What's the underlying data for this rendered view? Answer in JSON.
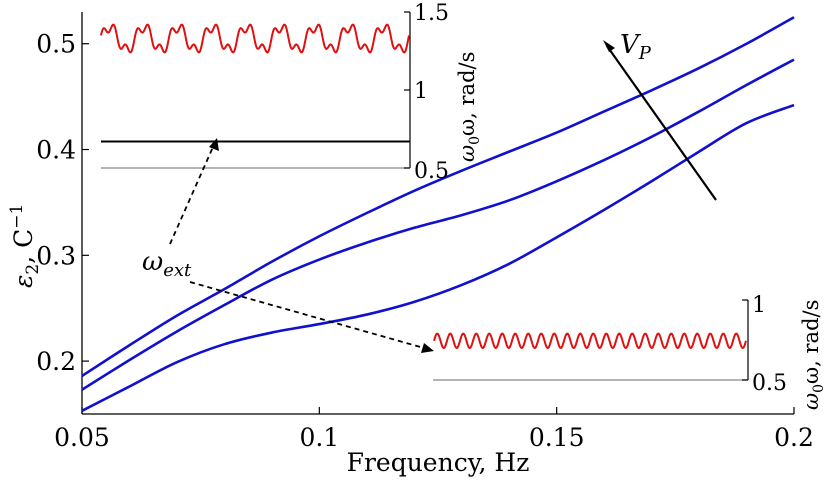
{
  "chart_data": {
    "type": "line",
    "xlabel": "Frequency, Hz",
    "ylabel_main": "ε",
    "ylabel_sub": "2",
    "ylabel_rest": ", C",
    "ylabel_sup": "−1",
    "xlim": [
      0.05,
      0.2
    ],
    "ylim": [
      0.15,
      0.53
    ],
    "xticks": [
      0.05,
      0.1,
      0.15,
      0.2
    ],
    "xtick_labels": [
      "0.05",
      "0.1",
      "0.15",
      "0.2"
    ],
    "yticks": [
      0.2,
      0.3,
      0.4,
      0.5
    ],
    "ytick_labels": [
      "0.2",
      "0.3",
      "0.4",
      "0.5"
    ],
    "series": [
      {
        "name": "curve-top",
        "color": "#1010d0",
        "x": [
          0.05,
          0.06,
          0.07,
          0.08,
          0.09,
          0.1,
          0.11,
          0.12,
          0.13,
          0.14,
          0.15,
          0.16,
          0.17,
          0.18,
          0.19,
          0.2
        ],
        "y": [
          0.186,
          0.215,
          0.243,
          0.268,
          0.294,
          0.318,
          0.34,
          0.361,
          0.38,
          0.398,
          0.416,
          0.436,
          0.456,
          0.477,
          0.5,
          0.525
        ]
      },
      {
        "name": "curve-middle",
        "color": "#1010d0",
        "x": [
          0.05,
          0.06,
          0.07,
          0.08,
          0.09,
          0.1,
          0.11,
          0.12,
          0.13,
          0.14,
          0.15,
          0.16,
          0.17,
          0.18,
          0.19,
          0.2
        ],
        "y": [
          0.173,
          0.201,
          0.228,
          0.253,
          0.277,
          0.296,
          0.312,
          0.326,
          0.338,
          0.352,
          0.37,
          0.39,
          0.412,
          0.436,
          0.461,
          0.485
        ]
      },
      {
        "name": "curve-bottom",
        "color": "#1010d0",
        "x": [
          0.05,
          0.06,
          0.07,
          0.08,
          0.09,
          0.1,
          0.11,
          0.12,
          0.13,
          0.14,
          0.15,
          0.16,
          0.17,
          0.18,
          0.19,
          0.2
        ],
        "y": [
          0.153,
          0.176,
          0.199,
          0.216,
          0.227,
          0.235,
          0.244,
          0.256,
          0.272,
          0.292,
          0.317,
          0.343,
          0.37,
          0.398,
          0.425,
          0.442
        ]
      }
    ],
    "arrow_label": "V",
    "arrow_label_sub": "P",
    "annotation": "ω",
    "annotation_sub": "ext",
    "insets": [
      {
        "name": "inset-top",
        "yticks": [
          "1.5",
          "1",
          "0.5"
        ],
        "ylabel_pre": "ω",
        "ylabel_sub": "0",
        "ylabel_post": "ω, rad/s",
        "signal_color": "#e01010",
        "signal_cycles": 9,
        "signal_mean": 1.33,
        "signal_amp": 0.1,
        "baseline_value": 0.67,
        "ylim": [
          0.5,
          1.5
        ]
      },
      {
        "name": "inset-bottom",
        "yticks": [
          "1",
          "0.5"
        ],
        "ylabel_pre": "ω",
        "ylabel_sub": "0",
        "ylabel_post": "ω, rad/s",
        "signal_color": "#e01010",
        "signal_cycles": 24,
        "signal_mean": 0.745,
        "signal_amp": 0.045,
        "ylim": [
          0.5,
          1.0
        ]
      }
    ]
  }
}
